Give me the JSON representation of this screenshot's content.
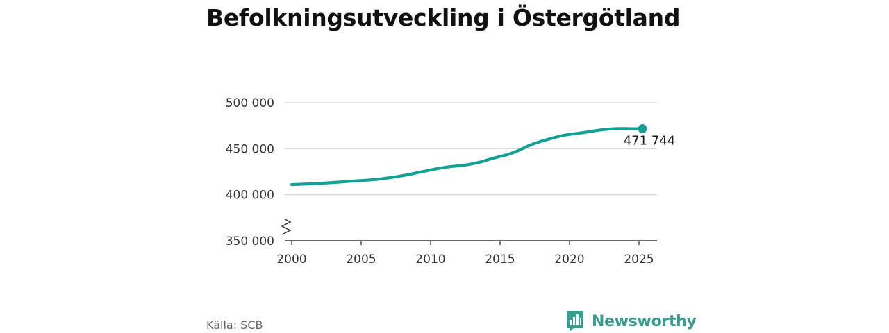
{
  "title": "Befolkningsutveckling i Östergötland",
  "source": "Källa: SCB",
  "logo": {
    "text": "Newsworthy",
    "icon": "bar-chart-speech-bubble-icon",
    "color": "#3a9b8f"
  },
  "colors": {
    "line": "#14a093",
    "grid": "#d9d9d9",
    "axis": "#333333"
  },
  "chart_data": {
    "type": "line",
    "title": "Befolkningsutveckling i Östergötland",
    "xlabel": "",
    "ylabel": "",
    "x_ticks": [
      "2000",
      "2005",
      "2010",
      "2015",
      "2020",
      "2025"
    ],
    "y_ticks": [
      "350 000",
      "400 000",
      "450 000",
      "500 000"
    ],
    "y_tick_values": [
      350000,
      400000,
      450000,
      500000
    ],
    "xlim": [
      1999.5,
      2026.3
    ],
    "ylim": [
      350000,
      500000
    ],
    "y_axis_break": true,
    "grid": "horizontal",
    "last_value_label": "471 744",
    "series": [
      {
        "color": "#14a093",
        "x": [
          2000,
          2000.5,
          2001,
          2001.5,
          2002,
          2002.5,
          2003,
          2003.5,
          2004,
          2004.5,
          2005,
          2005.5,
          2006,
          2006.5,
          2007,
          2007.5,
          2008,
          2008.5,
          2009,
          2009.5,
          2010,
          2010.5,
          2011,
          2011.5,
          2012,
          2012.5,
          2013,
          2013.5,
          2014,
          2014.5,
          2015,
          2015.5,
          2016,
          2016.5,
          2017,
          2017.5,
          2018,
          2018.5,
          2019,
          2019.5,
          2020,
          2020.5,
          2021,
          2021.5,
          2022,
          2022.5,
          2023,
          2023.5,
          2024,
          2024.5,
          2025,
          2025.25
        ],
        "values": [
          411000,
          411300,
          411600,
          411900,
          412300,
          412800,
          413300,
          413800,
          414400,
          414900,
          415400,
          415900,
          416500,
          417300,
          418400,
          419500,
          420800,
          422100,
          423800,
          425300,
          426900,
          428400,
          429700,
          430700,
          431400,
          432300,
          433600,
          435200,
          437400,
          439600,
          441600,
          443400,
          446000,
          449200,
          452900,
          455800,
          458300,
          460400,
          462500,
          464300,
          465600,
          466500,
          467500,
          468700,
          469900,
          470900,
          471500,
          471800,
          471800,
          471700,
          471700,
          471744
        ]
      }
    ]
  }
}
